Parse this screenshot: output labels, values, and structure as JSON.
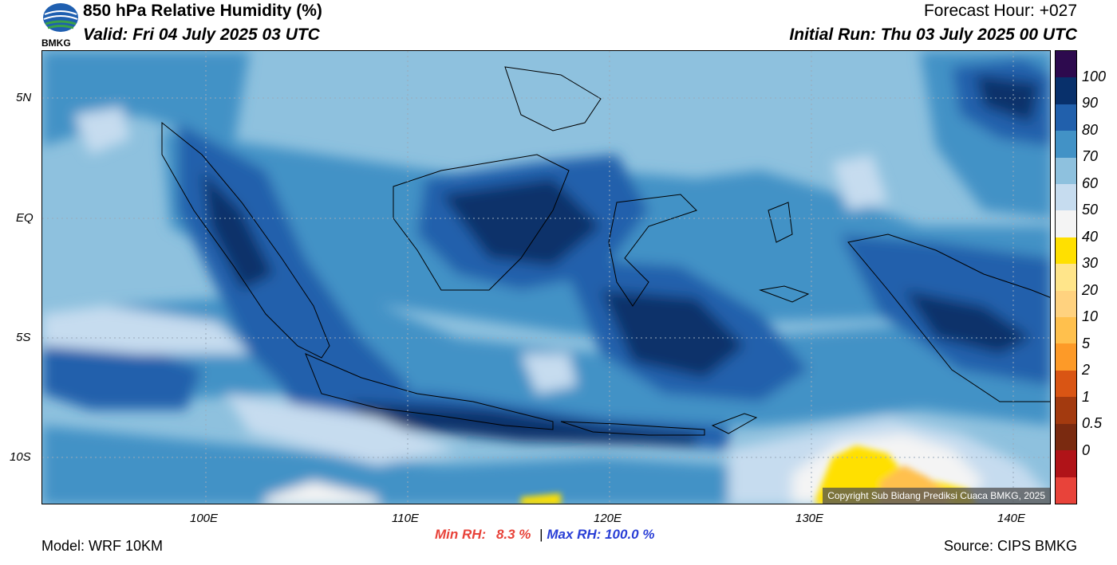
{
  "header": {
    "title": "850 hPa Relative Humidity (%)",
    "valid": "Valid: Fri 04 July 2025 03 UTC",
    "forecast_hour": "Forecast Hour: +027",
    "initial_run": "Initial Run: Thu 03 July 2025 00 UTC",
    "logo_text": "BMKG"
  },
  "axes": {
    "lat_labels": [
      "5N",
      "EQ",
      "5S",
      "10S"
    ],
    "lon_labels": [
      "100E",
      "110E",
      "120E",
      "130E",
      "140E"
    ]
  },
  "colorbar": {
    "labels": [
      "100",
      "90",
      "80",
      "70",
      "60",
      "50",
      "40",
      "30",
      "20",
      "10",
      "5",
      "2",
      "1",
      "0.5",
      "0"
    ],
    "colors": [
      "#2d0a4e",
      "#08306b",
      "#2160ac",
      "#4292c6",
      "#8ec1de",
      "#c6dcef",
      "#f4f4f4",
      "#ffe000",
      "#ffe58a",
      "#ffd27f",
      "#ffc04d",
      "#fd9a28",
      "#d95514",
      "#a33a0f",
      "#7a2a10",
      "#b01318",
      "#e8433a"
    ]
  },
  "map": {
    "copyright": "Copyright Sub Bidang Prediksi Cuaca BMKG, 2025"
  },
  "stats": {
    "min_label": "Min RH:",
    "min_value": "8.3 %",
    "separator": "|",
    "max_label": "Max RH:",
    "max_value": "100.0 %"
  },
  "footer": {
    "model": "Model: WRF 10KM",
    "source": "Source: CIPS BMKG"
  }
}
